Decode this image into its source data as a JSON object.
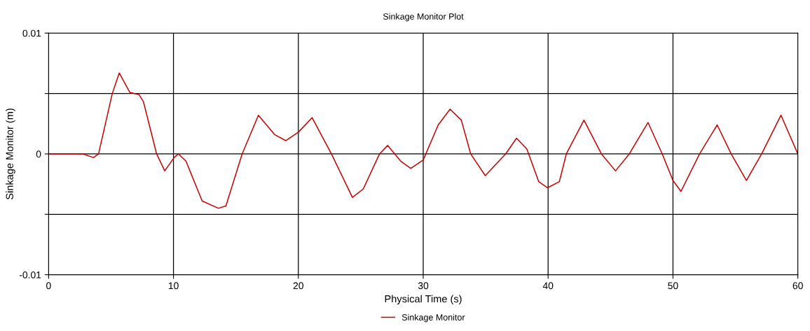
{
  "chart_data": {
    "type": "line",
    "title": "Sinkage Monitor Plot",
    "xlabel": "Physical Time (s)",
    "ylabel": "Sinkage Monitor (m)",
    "xlim": [
      0,
      60
    ],
    "xticks": [
      0,
      10,
      20,
      30,
      40,
      50,
      60
    ],
    "ylim": [
      -0.01,
      0.01
    ],
    "yticks": [
      -0.01,
      {
        "value": -0.005,
        "label": null
      },
      0,
      {
        "value": 0.005,
        "label": null
      },
      0.01
    ],
    "grid": true,
    "legend": "bottom",
    "marker": "none",
    "line_style": "solid",
    "series": [
      {
        "name": "Sinkage Monitor",
        "color": "#cc0000",
        "x": [
          0,
          2.75,
          3.6,
          4.0,
          5.1,
          5.66,
          6.5,
          7.25,
          7.6,
          8.65,
          9.3,
          10.05,
          10.4,
          11.0,
          12.3,
          13.6,
          14.2,
          15.5,
          16.8,
          18.1,
          19.0,
          20.0,
          21.1,
          22.65,
          24.33,
          25.2,
          26.5,
          27.15,
          28.2,
          29.0,
          30.0,
          31.2,
          32.15,
          33.05,
          33.8,
          34.97,
          35.87,
          36.6,
          37.47,
          38.3,
          39.25,
          39.96,
          40.9,
          41.46,
          42.87,
          44.27,
          45.4,
          46.5,
          48.0,
          49.14,
          50.0,
          50.64,
          52.13,
          53.54,
          54.66,
          55.88,
          57.1,
          58.65,
          60
        ],
        "values": [
          0,
          0,
          -0.0003,
          0,
          0.005,
          0.0067,
          0.0051,
          0.0049,
          0.0043,
          0,
          -0.0014,
          -0.0003,
          0,
          -0.0006,
          -0.0039,
          -0.0045,
          -0.0043,
          0,
          0.0032,
          0.0016,
          0.0011,
          0.0018,
          0.003,
          0,
          -0.0036,
          -0.0029,
          0,
          0.0007,
          -0.0006,
          -0.0012,
          -0.0005,
          0.0024,
          0.0037,
          0.0028,
          0,
          -0.0018,
          -0.0008,
          0,
          0.0013,
          0.0004,
          -0.0023,
          -0.0028,
          -0.0023,
          0,
          0.0028,
          0,
          -0.0014,
          0,
          0.0026,
          0,
          -0.0022,
          -0.0031,
          0,
          0.0024,
          0,
          -0.0022,
          0,
          0.0032,
          0
        ]
      }
    ]
  }
}
